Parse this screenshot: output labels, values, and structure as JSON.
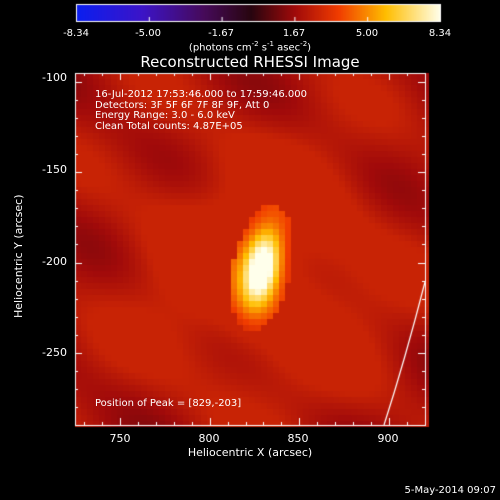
{
  "colorbar": {
    "ticks": [
      "-8.34",
      "-5.00",
      "-1.67",
      "1.67",
      "5.00",
      "8.34"
    ],
    "unit_prefix": "(photons cm",
    "unit_exp1": "-2",
    "unit_mid": " s",
    "unit_exp2": "-1",
    "unit_mid2": " asec",
    "unit_exp3": "-2",
    "unit_suffix": ")"
  },
  "plot": {
    "title": "Reconstructed RHESSI Image",
    "xlabel": "Heliocentric X (arcsec)",
    "ylabel": "Heliocentric Y (arcsec)",
    "xticks": [
      "750",
      "800",
      "850",
      "900"
    ],
    "yticks": [
      "-100",
      "-150",
      "-200",
      "-250"
    ],
    "xrange": [
      725,
      920
    ],
    "yrange": [
      -290,
      -95
    ],
    "xtick_values": [
      750,
      800,
      850,
      900
    ],
    "ytick_values": [
      -100,
      -150,
      -200,
      -250
    ],
    "info": {
      "line1": "16-Jul-2012 17:53:46.000 to 17:59:46.000",
      "line2": "Detectors: 3F 5F 6F 7F 8F 9F, Att 0",
      "line3": "Energy Range: 3.0 - 6.0 keV",
      "line4": "Clean    Total counts: 4.87E+05"
    },
    "peak_text": "Position of Peak = [829,-203]",
    "peak": [
      829,
      -203
    ]
  },
  "footer_date": "5-May-2014 09:07"
}
